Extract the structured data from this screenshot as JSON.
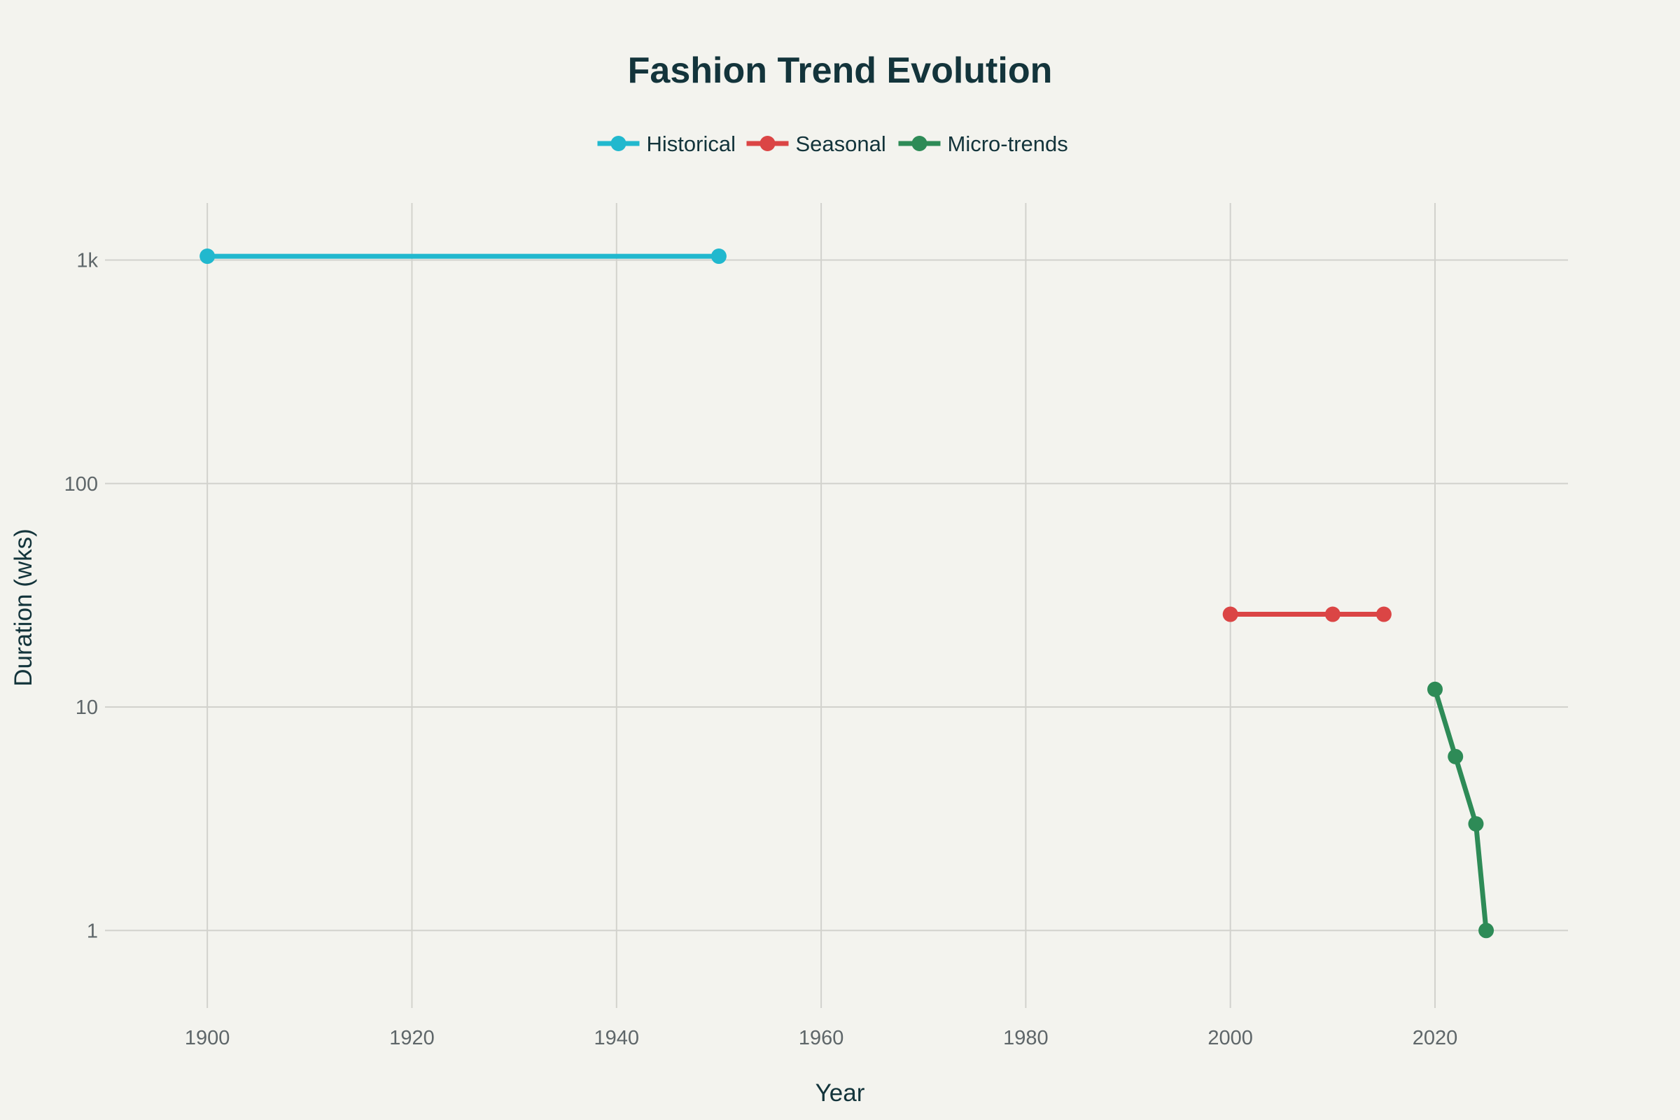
{
  "chart_data": {
    "type": "line",
    "title": "Fashion Trend Evolution",
    "xlabel": "Year",
    "ylabel": "Duration (wks)",
    "xlim": [
      1890,
      2033
    ],
    "ylim": [
      0.45,
      1800
    ],
    "y_scale": "log",
    "grid": true,
    "legend_position": "top-center",
    "x_ticks": [
      1900,
      1920,
      1940,
      1960,
      1980,
      2000,
      2020
    ],
    "x_tick_labels": [
      "1900",
      "1920",
      "1940",
      "1960",
      "1980",
      "2000",
      "2020"
    ],
    "y_ticks": [
      1,
      10,
      100,
      1000
    ],
    "y_tick_labels": [
      "1",
      "10",
      "100",
      "1k"
    ],
    "series": [
      {
        "name": "Historical",
        "color": "#21b8ce",
        "x": [
          1900,
          1950
        ],
        "y": [
          1040,
          1040
        ]
      },
      {
        "name": "Seasonal",
        "color": "#db4545",
        "x": [
          2000,
          2010,
          2015
        ],
        "y": [
          26,
          26,
          26
        ]
      },
      {
        "name": "Micro-trends",
        "color": "#2e8b57",
        "x": [
          2020,
          2022,
          2024,
          2025
        ],
        "y": [
          12,
          6,
          3,
          1
        ]
      }
    ]
  }
}
